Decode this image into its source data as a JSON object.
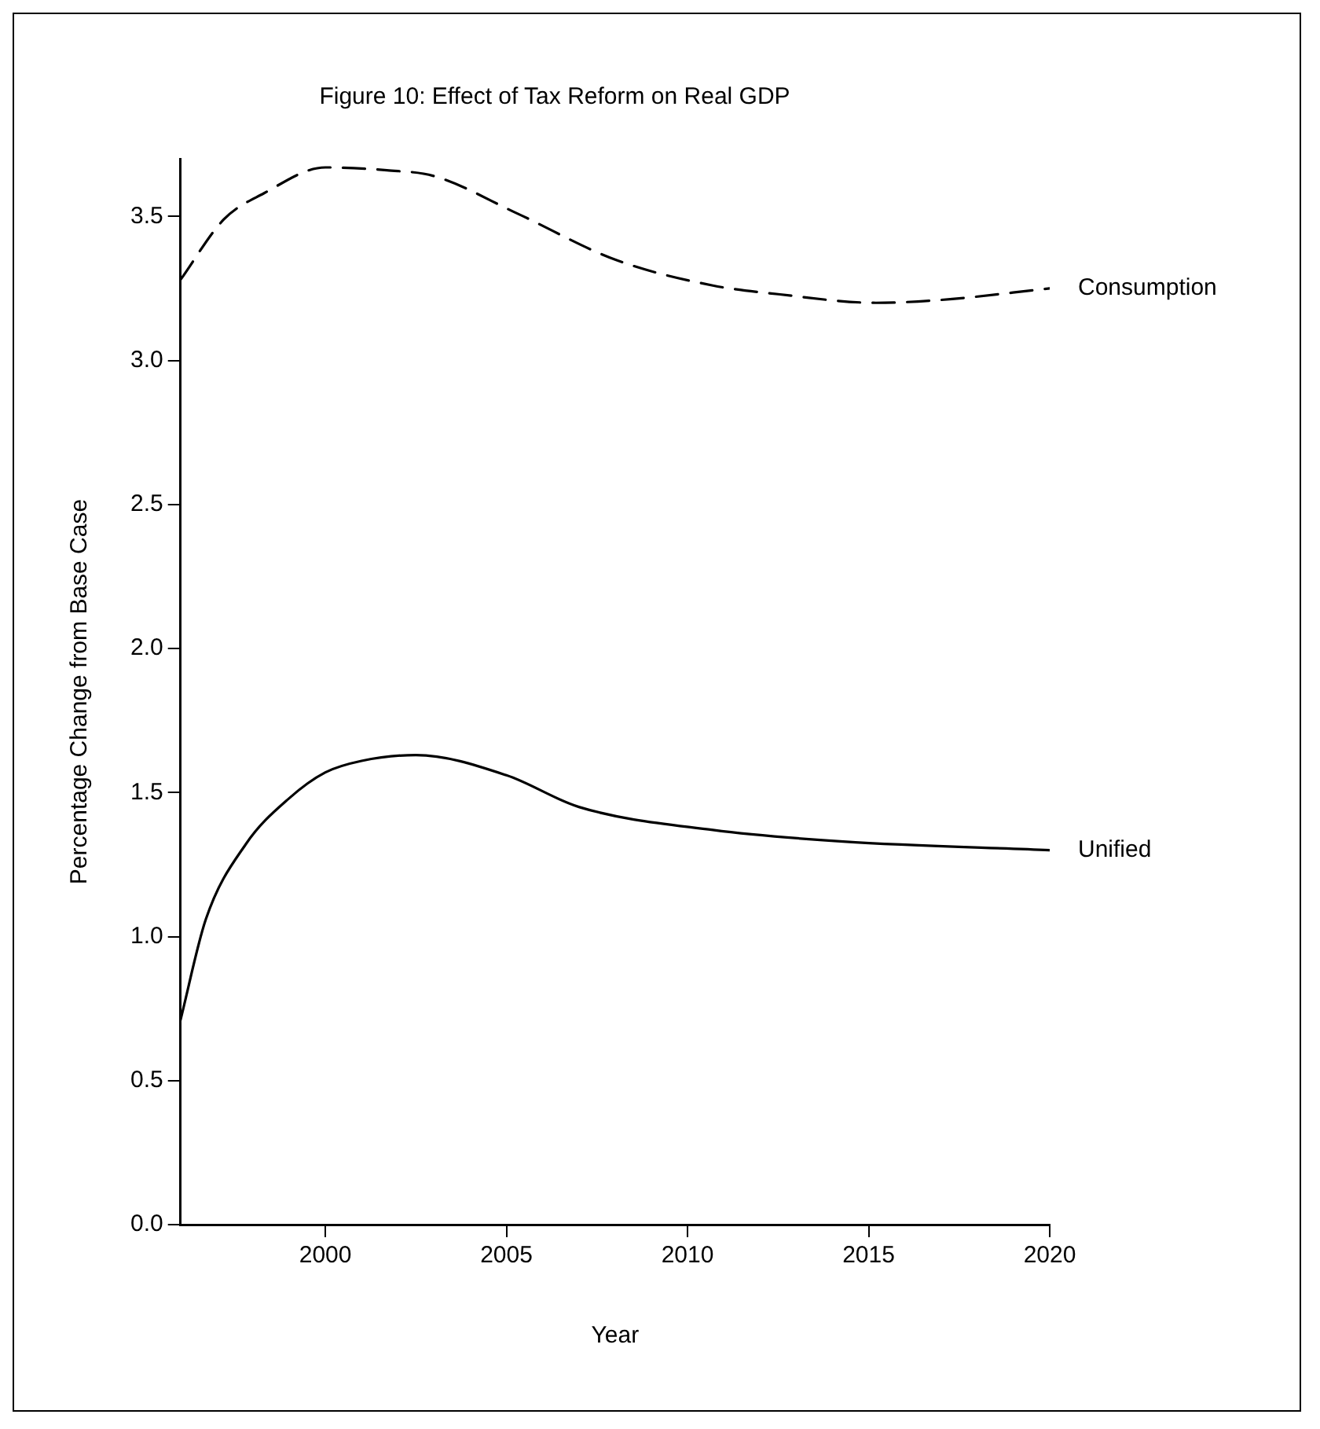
{
  "chart_data": {
    "type": "line",
    "title": "Figure 10: Effect of Tax Reform on Real GDP",
    "xlabel": "Year",
    "ylabel": "Percentage Change from Base Case",
    "xlim": [
      1996,
      2020
    ],
    "xticks": [
      2000,
      2005,
      2010,
      2015,
      2020
    ],
    "ylim": [
      0,
      3.7
    ],
    "yticks": [
      {
        "value": 0,
        "label": "0.0"
      },
      {
        "value": 0.5,
        "label": "0.5"
      },
      {
        "value": 1,
        "label": "1.0"
      },
      {
        "value": 1.5,
        "label": "1.5"
      },
      {
        "value": 2,
        "label": "2.0"
      },
      {
        "value": 2.5,
        "label": "2.5"
      },
      {
        "value": 3,
        "label": "3.0"
      },
      {
        "value": 3.5,
        "label": "3.5"
      }
    ],
    "grid": false,
    "legend": false,
    "marker": "none",
    "series": [
      {
        "name": "Consumption",
        "color": "#000000",
        "line_style": "dashed",
        "x": [
          1996,
          1997.2,
          1998.3,
          2000,
          2001.7,
          2003,
          2005.3,
          2008,
          2010.7,
          2012.5,
          2015.2,
          2017,
          2020
        ],
        "values": [
          3.28,
          3.49,
          3.58,
          3.67,
          3.66,
          3.64,
          3.51,
          3.35,
          3.26,
          3.23,
          3.2,
          3.21,
          3.25
        ]
      },
      {
        "name": "Unified",
        "color": "#000000",
        "line_style": "solid",
        "x": [
          1996,
          1996.7,
          1997.8,
          1999,
          2000,
          2001,
          2002.5,
          2005,
          2007,
          2010.7,
          2014.3,
          2020
        ],
        "values": [
          0.71,
          1.06,
          1.32,
          1.48,
          1.57,
          1.61,
          1.63,
          1.56,
          1.45,
          1.37,
          1.33,
          1.3
        ]
      }
    ]
  }
}
